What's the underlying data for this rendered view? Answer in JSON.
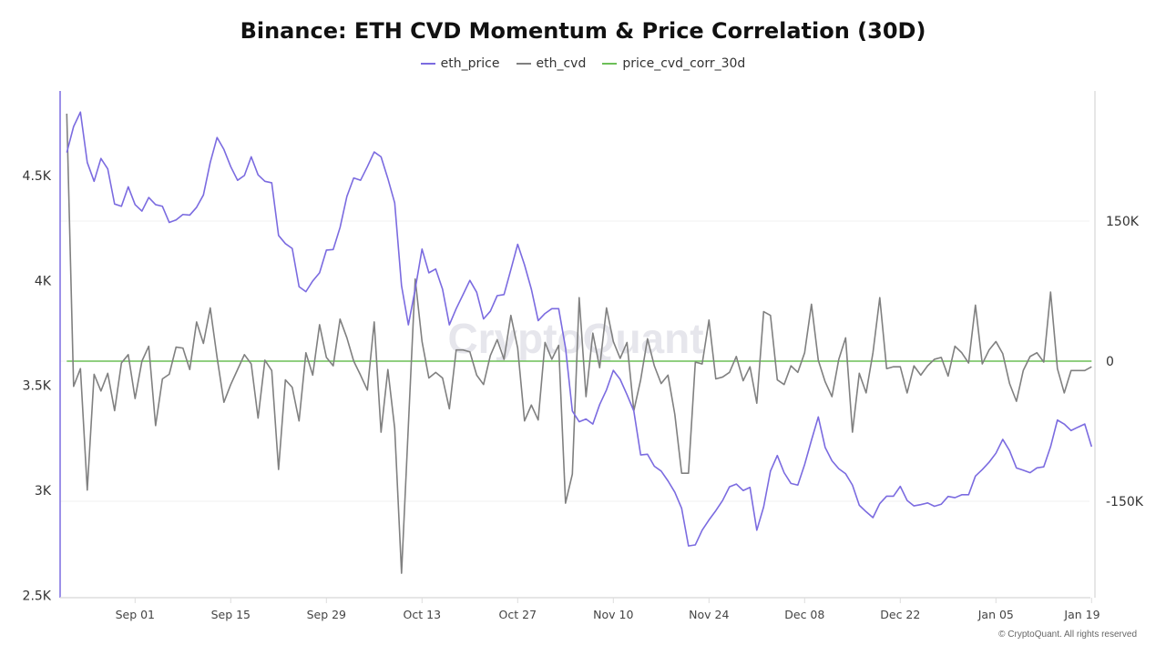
{
  "title": "Binance: ETH CVD Momentum & Price Correlation (30D)",
  "watermark": "CryptoQuant",
  "copyright": "© CryptoQuant. All rights reserved",
  "chart_data": {
    "type": "line",
    "title": "Binance: ETH CVD Momentum & Price Correlation (30D)",
    "legend_position": "top",
    "grid": true,
    "x_tick_labels": [
      "Sep 01",
      "Sep 15",
      "Sep 29",
      "Oct 13",
      "Oct 27",
      "Nov 10",
      "Nov 24",
      "Dec 08",
      "Dec 22",
      "Jan 05",
      "Jan 19"
    ],
    "y_left": {
      "ticks": [
        2500,
        3000,
        3500,
        4000,
        4500
      ],
      "tick_labels": [
        "2.5K",
        "3K",
        "3.5K",
        "4K",
        "4.5K"
      ],
      "range": [
        2500,
        4920
      ]
    },
    "y_right": {
      "ticks": [
        -150000,
        0,
        150000
      ],
      "tick_labels": [
        "-150K",
        "0",
        "150K"
      ],
      "range": [
        -250000,
        295000
      ]
    },
    "x": [
      "Aug 22",
      "Aug 23",
      "Aug 24",
      "Aug 25",
      "Aug 26",
      "Aug 27",
      "Aug 28",
      "Aug 29",
      "Aug 30",
      "Aug 31",
      "Sep 01",
      "Sep 02",
      "Sep 03",
      "Sep 04",
      "Sep 05",
      "Sep 06",
      "Sep 07",
      "Sep 08",
      "Sep 09",
      "Sep 10",
      "Sep 11",
      "Sep 12",
      "Sep 13",
      "Sep 14",
      "Sep 15",
      "Sep 16",
      "Sep 17",
      "Sep 18",
      "Sep 19",
      "Sep 20",
      "Sep 21",
      "Sep 22",
      "Sep 23",
      "Sep 24",
      "Sep 25",
      "Sep 26",
      "Sep 27",
      "Sep 28",
      "Sep 29",
      "Sep 30",
      "Oct 01",
      "Oct 02",
      "Oct 03",
      "Oct 04",
      "Oct 05",
      "Oct 06",
      "Oct 07",
      "Oct 08",
      "Oct 09",
      "Oct 10",
      "Oct 11",
      "Oct 12",
      "Oct 13",
      "Oct 14",
      "Oct 15",
      "Oct 16",
      "Oct 17",
      "Oct 18",
      "Oct 19",
      "Oct 20",
      "Oct 21",
      "Oct 22",
      "Oct 23",
      "Oct 24",
      "Oct 25",
      "Oct 26",
      "Oct 27",
      "Oct 28",
      "Oct 29",
      "Oct 30",
      "Oct 31",
      "Nov 01",
      "Nov 02",
      "Nov 03",
      "Nov 04",
      "Nov 05",
      "Nov 06",
      "Nov 07",
      "Nov 08",
      "Nov 09",
      "Nov 10",
      "Nov 11",
      "Nov 12",
      "Nov 13",
      "Nov 14",
      "Nov 15",
      "Nov 16",
      "Nov 17",
      "Nov 18",
      "Nov 19",
      "Nov 20",
      "Nov 21",
      "Nov 22",
      "Nov 23",
      "Nov 24",
      "Nov 25",
      "Nov 26",
      "Nov 27",
      "Nov 28",
      "Nov 29",
      "Nov 30",
      "Dec 01",
      "Dec 02",
      "Dec 03",
      "Dec 04",
      "Dec 05",
      "Dec 06",
      "Dec 07",
      "Dec 08",
      "Dec 09",
      "Dec 10",
      "Dec 11",
      "Dec 12",
      "Dec 13",
      "Dec 14",
      "Dec 15",
      "Dec 16",
      "Dec 17",
      "Dec 18",
      "Dec 19",
      "Dec 20",
      "Dec 21",
      "Dec 22",
      "Dec 23",
      "Dec 24",
      "Dec 25",
      "Dec 26",
      "Dec 27",
      "Dec 28",
      "Dec 29",
      "Dec 30",
      "Dec 31",
      "Jan 01",
      "Jan 02",
      "Jan 03",
      "Jan 04",
      "Jan 05",
      "Jan 06",
      "Jan 07",
      "Jan 08",
      "Jan 09",
      "Jan 10",
      "Jan 11",
      "Jan 12",
      "Jan 13",
      "Jan 14",
      "Jan 15",
      "Jan 16",
      "Jan 17",
      "Jan 18",
      "Jan 19"
    ],
    "series": [
      {
        "name": "eth_price",
        "axis": "left",
        "color": "#7b6be0",
        "values": [
          4610,
          4734,
          4803,
          4563,
          4473,
          4582,
          4532,
          4365,
          4354,
          4447,
          4362,
          4331,
          4396,
          4362,
          4354,
          4277,
          4289,
          4315,
          4312,
          4349,
          4408,
          4563,
          4682,
          4625,
          4543,
          4478,
          4501,
          4590,
          4504,
          4473,
          4466,
          4215,
          4176,
          4153,
          3971,
          3947,
          3998,
          4037,
          4145,
          4148,
          4253,
          4401,
          4489,
          4478,
          4543,
          4613,
          4590,
          4486,
          4370,
          3975,
          3789,
          3959,
          4150,
          4037,
          4055,
          3959,
          3789,
          3866,
          3933,
          4001,
          3944,
          3817,
          3854,
          3928,
          3933,
          4052,
          4173,
          4075,
          3959,
          3809,
          3843,
          3866,
          3866,
          3680,
          3378,
          3327,
          3340,
          3316,
          3409,
          3479,
          3572,
          3529,
          3456,
          3378,
          3169,
          3172,
          3115,
          3092,
          3045,
          2991,
          2914,
          2735,
          2740,
          2810,
          2859,
          2903,
          2952,
          3017,
          3030,
          2999,
          3014,
          2810,
          2921,
          3092,
          3166,
          3084,
          3033,
          3025,
          3123,
          3239,
          3350,
          3205,
          3141,
          3103,
          3079,
          3025,
          2929,
          2898,
          2870,
          2937,
          2972,
          2972,
          3019,
          2952,
          2926,
          2932,
          2940,
          2924,
          2934,
          2971,
          2965,
          2979,
          2979,
          3068,
          3099,
          3134,
          3177,
          3243,
          3189,
          3107,
          3096,
          3084,
          3107,
          3112,
          3208,
          3335,
          3316,
          3285,
          3301,
          3316,
          3208
        ]
      },
      {
        "name": "eth_cvd",
        "axis": "right",
        "color": "#808080",
        "values": [
          265000,
          -27000,
          -8000,
          -138000,
          -14000,
          -32000,
          -13000,
          -53000,
          -2000,
          7000,
          -40000,
          0,
          16000,
          -69000,
          -19000,
          -14000,
          15000,
          14000,
          -9000,
          42000,
          19000,
          57000,
          4000,
          -44000,
          -25000,
          -9000,
          7000,
          -3000,
          -61000,
          1000,
          -10000,
          -116000,
          -20000,
          -28000,
          -64000,
          9000,
          -15000,
          39000,
          4000,
          -5000,
          45000,
          25000,
          0,
          -15000,
          -31000,
          42000,
          -76000,
          -9000,
          -72000,
          -227000,
          -69000,
          88000,
          21000,
          -18000,
          -12000,
          -18000,
          -51000,
          12000,
          12000,
          10000,
          -15000,
          -25000,
          6000,
          23000,
          2000,
          49000,
          14000,
          -64000,
          -47000,
          -63000,
          20000,
          2000,
          17000,
          -152000,
          -121000,
          68000,
          -38000,
          30000,
          -7000,
          57000,
          21000,
          3000,
          20000,
          -53000,
          -20000,
          24000,
          -5000,
          -24000,
          -15000,
          -57000,
          -120000,
          -120000,
          -1000,
          -3000,
          44000,
          -19000,
          -17000,
          -12000,
          5000,
          -21000,
          -6000,
          -45000,
          53000,
          49000,
          -20000,
          -25000,
          -5000,
          -12000,
          9000,
          61000,
          1000,
          -22000,
          -38000,
          2000,
          25000,
          -76000,
          -13000,
          -34000,
          9000,
          68000,
          -8000,
          -6000,
          -6000,
          -34000,
          -5000,
          -15000,
          -5000,
          2000,
          4000,
          -16000,
          16000,
          9000,
          -2000,
          60000,
          -3000,
          12000,
          21000,
          8000,
          -24000,
          -43000,
          -10000,
          5000,
          9000,
          -1000,
          74000,
          -8000,
          -34000,
          -10000,
          -10000,
          -10000,
          -6000
        ]
      },
      {
        "name": "price_cvd_corr_30d",
        "axis": "right",
        "color": "#6cbf57",
        "constant_value": 0
      }
    ]
  }
}
